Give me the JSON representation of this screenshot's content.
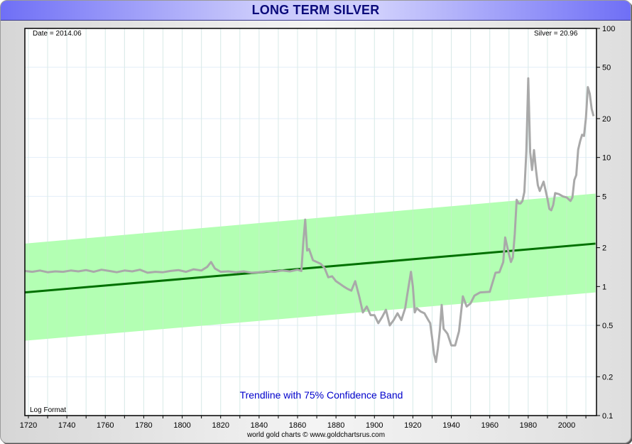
{
  "window": {
    "title": "LONG TERM SILVER"
  },
  "header": {
    "date_readout": "Date = 2014.06",
    "value_readout": "Silver = 20.96"
  },
  "annotations": {
    "band_note": "Trendline with 75% Confidence Band",
    "scale_note": "Log Format",
    "footer": "world gold charts © www.goldchartsrus.com"
  },
  "colors": {
    "title_text": "#0a0a7a",
    "series_line": "#a9a9a9",
    "trend_line": "#007000",
    "band_fill": "#b3ffb3",
    "grid": "#e3eef8",
    "note_text": "#0000cc"
  },
  "chart_data": {
    "type": "line",
    "title": "LONG TERM SILVER",
    "xlabel": "",
    "ylabel": "",
    "y_scale": "log",
    "xlim": [
      1718,
      2015
    ],
    "ylim": [
      0.1,
      100
    ],
    "x_ticks": [
      1720,
      1740,
      1760,
      1780,
      1800,
      1820,
      1840,
      1860,
      1880,
      1900,
      1920,
      1940,
      1960,
      1980,
      2000
    ],
    "y_ticks": [
      0.1,
      0.2,
      0.5,
      1,
      2,
      5,
      10,
      20,
      50,
      100
    ],
    "grid": true,
    "legend": null,
    "series": [
      {
        "name": "Silver",
        "x": [
          1718,
          1722,
          1726,
          1730,
          1734,
          1738,
          1742,
          1746,
          1750,
          1754,
          1758,
          1762,
          1766,
          1770,
          1774,
          1778,
          1782,
          1786,
          1790,
          1794,
          1798,
          1802,
          1806,
          1810,
          1813,
          1815,
          1817,
          1820,
          1824,
          1828,
          1832,
          1836,
          1840,
          1844,
          1848,
          1852,
          1856,
          1860,
          1862,
          1863,
          1864,
          1865,
          1866,
          1868,
          1870,
          1872,
          1874,
          1876,
          1878,
          1880,
          1882,
          1884,
          1886,
          1888,
          1890,
          1892,
          1894,
          1896,
          1898,
          1900,
          1902,
          1904,
          1906,
          1908,
          1910,
          1912,
          1914,
          1916,
          1917,
          1918,
          1919,
          1920,
          1921,
          1922,
          1924,
          1926,
          1928,
          1929,
          1930,
          1931,
          1932,
          1933,
          1934,
          1935,
          1936,
          1937,
          1938,
          1940,
          1942,
          1944,
          1946,
          1948,
          1950,
          1952,
          1955,
          1960,
          1963,
          1965,
          1967,
          1968,
          1970,
          1971,
          1972,
          1973,
          1974,
          1975,
          1976,
          1977,
          1978,
          1979,
          1980,
          1981,
          1982,
          1983,
          1984,
          1985,
          1986,
          1988,
          1990,
          1991,
          1992,
          1993,
          1994,
          1996,
          1998,
          2000,
          2002,
          2003,
          2004,
          2005,
          2006,
          2007,
          2008,
          2009,
          2010,
          2011,
          2012,
          2013,
          2014
        ],
        "values": [
          1.32,
          1.3,
          1.33,
          1.29,
          1.31,
          1.3,
          1.33,
          1.31,
          1.34,
          1.3,
          1.35,
          1.32,
          1.29,
          1.33,
          1.31,
          1.35,
          1.28,
          1.3,
          1.29,
          1.32,
          1.34,
          1.3,
          1.36,
          1.33,
          1.42,
          1.55,
          1.38,
          1.3,
          1.31,
          1.29,
          1.31,
          1.28,
          1.29,
          1.31,
          1.3,
          1.33,
          1.31,
          1.35,
          1.32,
          2.2,
          3.3,
          1.9,
          1.95,
          1.6,
          1.55,
          1.5,
          1.4,
          1.18,
          1.2,
          1.1,
          1.05,
          1.0,
          0.96,
          0.93,
          1.1,
          0.85,
          0.63,
          0.7,
          0.6,
          0.6,
          0.52,
          0.58,
          0.66,
          0.5,
          0.55,
          0.62,
          0.55,
          0.68,
          0.85,
          1.05,
          1.3,
          1.0,
          0.63,
          0.68,
          0.64,
          0.62,
          0.55,
          0.52,
          0.4,
          0.3,
          0.26,
          0.33,
          0.45,
          0.72,
          0.47,
          0.45,
          0.43,
          0.35,
          0.35,
          0.45,
          0.84,
          0.7,
          0.74,
          0.85,
          0.9,
          0.91,
          1.28,
          1.29,
          1.55,
          2.4,
          1.77,
          1.55,
          1.68,
          2.55,
          4.7,
          4.4,
          4.4,
          4.6,
          5.4,
          11.1,
          41.0,
          11.0,
          8.0,
          11.4,
          8.1,
          6.1,
          5.5,
          6.5,
          4.8,
          4.0,
          3.9,
          4.3,
          5.3,
          5.2,
          5.0,
          4.9,
          4.6,
          4.9,
          6.7,
          7.3,
          11.5,
          13.4,
          15.0,
          14.7,
          20.2,
          35.1,
          31.2,
          23.8,
          20.9
        ]
      },
      {
        "name": "Trendline",
        "x": [
          1718,
          2015
        ],
        "values": [
          0.9,
          2.15
        ]
      },
      {
        "name": "75% Confidence Band Upper",
        "x": [
          1718,
          2015
        ],
        "values": [
          2.15,
          5.25
        ]
      },
      {
        "name": "75% Confidence Band Lower",
        "x": [
          1718,
          2015
        ],
        "values": [
          0.38,
          0.9
        ]
      }
    ]
  }
}
